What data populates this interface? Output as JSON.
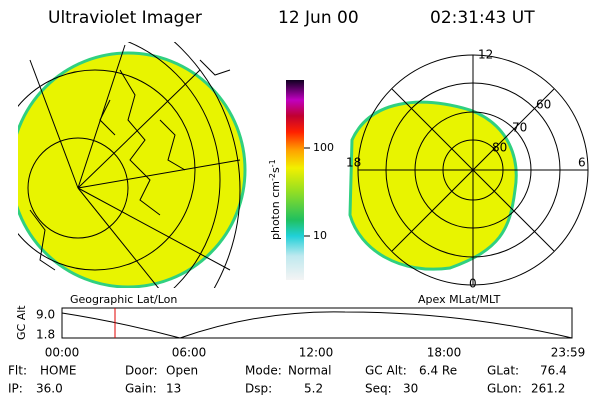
{
  "header": {
    "title": "Ultraviolet Imager",
    "date": "12 Jun 00",
    "time": "02:31:43 UT"
  },
  "colorbar": {
    "unit": "photon cm",
    "unit_sup1": "-2",
    "unit_mid": "s",
    "unit_sup2": "-1",
    "ticks": [
      "100",
      "10"
    ]
  },
  "left_panel": {
    "caption": "Geographic Lat/Lon"
  },
  "right_panel": {
    "caption": "Apex MLat/MLT",
    "mlt_labels": [
      "12",
      "6",
      "0",
      "18"
    ],
    "lat_labels": [
      "60",
      "70",
      "80"
    ]
  },
  "timeline": {
    "y_label": "GC Alt",
    "yticks": [
      "9.0",
      "1.8"
    ],
    "xticks": [
      "00:00",
      "06:00",
      "12:00",
      "18:00",
      "23:59"
    ]
  },
  "info": [
    [
      {
        "label": "Flt:",
        "value": "HOME"
      },
      {
        "label": "Door:",
        "value": "Open"
      },
      {
        "label": "Mode:",
        "value": "Normal"
      },
      {
        "label": "GC Alt:",
        "value": "6.4 Re"
      },
      {
        "label": "GLat:",
        "value": "76.4"
      }
    ],
    [
      {
        "label": "IP:",
        "value": "36.0"
      },
      {
        "label": "Gain:",
        "value": "13"
      },
      {
        "label": "Dsp:",
        "value": "5.2"
      },
      {
        "label": "Seq:",
        "value": "30"
      },
      {
        "label": "GLon:",
        "value": "261.2"
      }
    ]
  ]
}
